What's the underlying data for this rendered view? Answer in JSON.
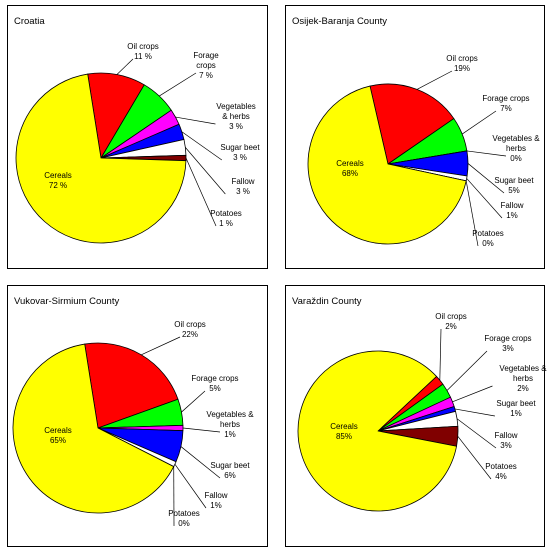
{
  "colors": {
    "Cereals": "#ffff00",
    "Oil crops": "#ff0000",
    "Forage crops": "#00ff00",
    "Vegetables & herbs": "#ff00ff",
    "Sugar beet": "#0000ff",
    "Fallow": "#ffffff",
    "Potatoes": "#800000"
  },
  "chart_data": [
    {
      "type": "pie",
      "title": "Croatia",
      "slices": [
        {
          "category": "Oil crops",
          "value": 11,
          "label_lines": [
            "Oil crops",
            "11 %"
          ]
        },
        {
          "category": "Forage crops",
          "value": 7,
          "label_lines": [
            "Forage",
            "crops",
            "7 %"
          ]
        },
        {
          "category": "Vegetables & herbs",
          "value": 3,
          "label_lines": [
            "Vegetables",
            "& herbs",
            "3 %"
          ]
        },
        {
          "category": "Sugar beet",
          "value": 3,
          "label_lines": [
            "Sugar beet",
            "3 %"
          ]
        },
        {
          "category": "Fallow",
          "value": 3,
          "label_lines": [
            "Fallow",
            "3 %"
          ]
        },
        {
          "category": "Potatoes",
          "value": 1,
          "label_lines": [
            "Potatoes",
            "1 %"
          ]
        },
        {
          "category": "Cereals",
          "value": 72,
          "label_lines": [
            "Cereals",
            "72 %"
          ]
        }
      ]
    },
    {
      "type": "pie",
      "title": "Osijek-Baranja County",
      "slices": [
        {
          "category": "Oil crops",
          "value": 19,
          "label_lines": [
            "Oil crops",
            "19%"
          ]
        },
        {
          "category": "Forage crops",
          "value": 7,
          "label_lines": [
            "Forage crops",
            "7%"
          ]
        },
        {
          "category": "Vegetables & herbs",
          "value": 0,
          "label_lines": [
            "Vegetables &",
            "herbs",
            "0%"
          ]
        },
        {
          "category": "Sugar beet",
          "value": 5,
          "label_lines": [
            "Sugar beet",
            "5%"
          ]
        },
        {
          "category": "Fallow",
          "value": 1,
          "label_lines": [
            "Fallow",
            "1%"
          ]
        },
        {
          "category": "Potatoes",
          "value": 0,
          "label_lines": [
            "Potatoes",
            "0%"
          ]
        },
        {
          "category": "Cereals",
          "value": 68,
          "label_lines": [
            "Cereals",
            "68%"
          ]
        }
      ]
    },
    {
      "type": "pie",
      "title": "Vukovar-Sirmium County",
      "slices": [
        {
          "category": "Oil crops",
          "value": 22,
          "label_lines": [
            "Oil crops",
            "22%"
          ]
        },
        {
          "category": "Forage crops",
          "value": 5,
          "label_lines": [
            "Forage crops",
            "5%"
          ]
        },
        {
          "category": "Vegetables & herbs",
          "value": 1,
          "label_lines": [
            "Vegetables &",
            "herbs",
            "1%"
          ]
        },
        {
          "category": "Sugar beet",
          "value": 6,
          "label_lines": [
            "Sugar beet",
            "6%"
          ]
        },
        {
          "category": "Fallow",
          "value": 1,
          "label_lines": [
            "Fallow",
            "1%"
          ]
        },
        {
          "category": "Potatoes",
          "value": 0,
          "label_lines": [
            "Potatoes",
            "0%"
          ]
        },
        {
          "category": "Cereals",
          "value": 65,
          "label_lines": [
            "Cereals",
            "65%"
          ]
        }
      ]
    },
    {
      "type": "pie",
      "title": "Varaždin County",
      "slices": [
        {
          "category": "Oil crops",
          "value": 2,
          "label_lines": [
            "Oil crops",
            "2%"
          ]
        },
        {
          "category": "Forage crops",
          "value": 3,
          "label_lines": [
            "Forage crops",
            "3%"
          ]
        },
        {
          "category": "Vegetables & herbs",
          "value": 2,
          "label_lines": [
            "Vegetables &",
            "herbs",
            "2%"
          ]
        },
        {
          "category": "Sugar beet",
          "value": 1,
          "label_lines": [
            "Sugar beet",
            "1%"
          ]
        },
        {
          "category": "Fallow",
          "value": 3,
          "label_lines": [
            "Fallow",
            "3%"
          ]
        },
        {
          "category": "Potatoes",
          "value": 4,
          "label_lines": [
            "Potatoes",
            "4%"
          ]
        },
        {
          "category": "Cereals",
          "value": 85,
          "label_lines": [
            "Cereals",
            "85%"
          ]
        }
      ]
    }
  ]
}
